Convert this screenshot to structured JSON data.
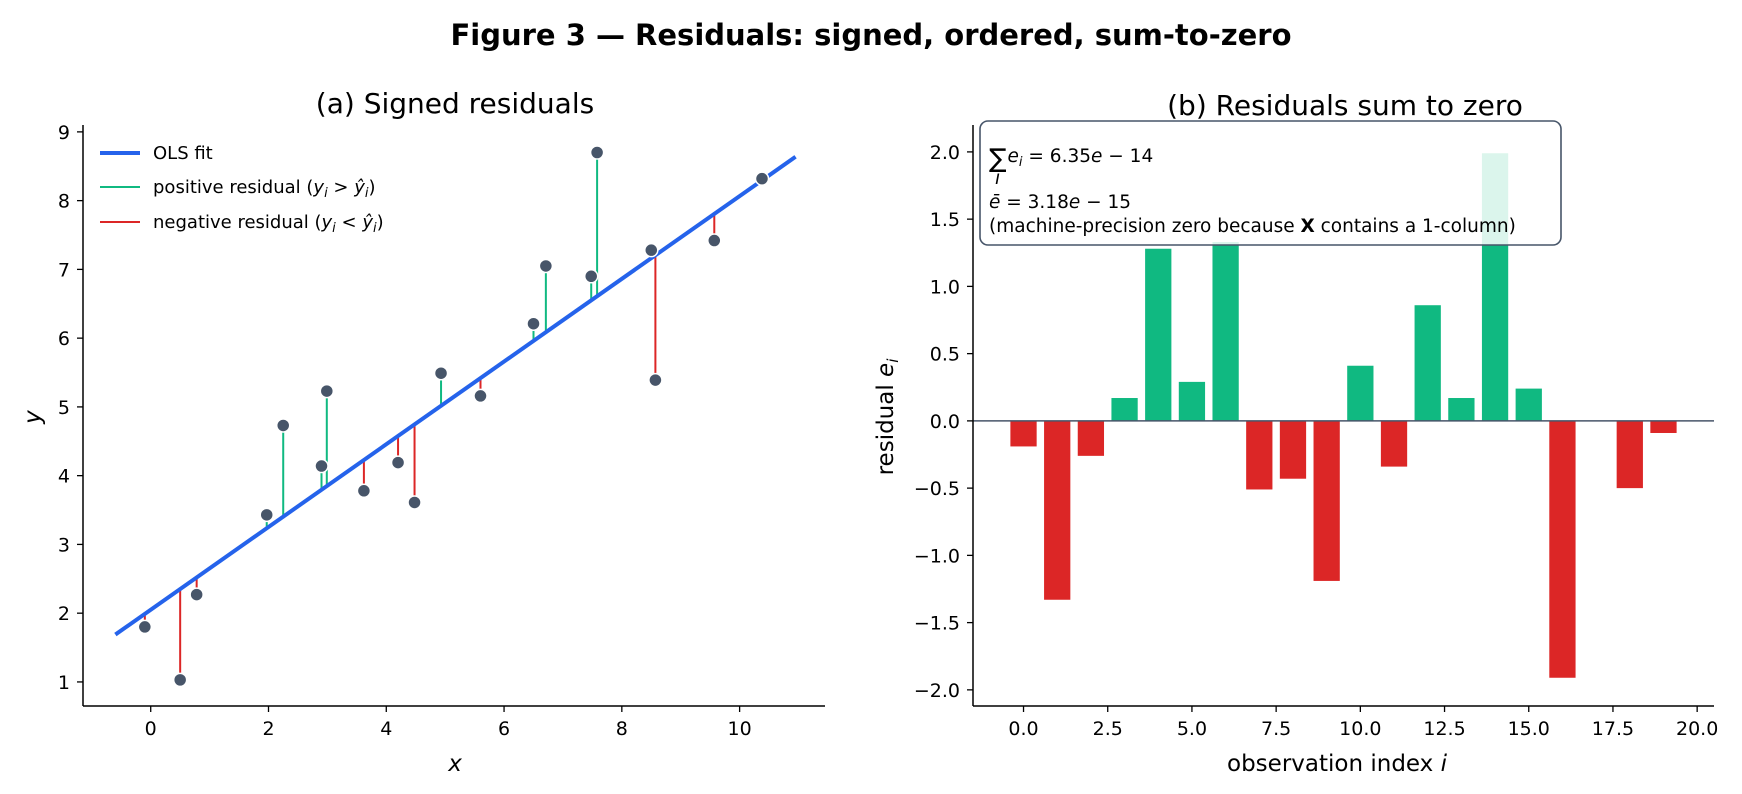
{
  "figure": {
    "suptitle": "Figure 3 — Residuals: signed, ordered, sum-to-zero"
  },
  "colors": {
    "fit": "#2563eb",
    "positive": "#10b981",
    "negative": "#dc2626",
    "point": "#475569",
    "axis": "#000000",
    "annotation_border": "#475569"
  },
  "chart_data": [
    {
      "type": "scatter",
      "title": "(a) Signed residuals",
      "xlabel": "x",
      "ylabel": "y",
      "xlim": [
        -1.15,
        11.45
      ],
      "ylim": [
        0.65,
        9.1
      ],
      "xticks": [
        0,
        2,
        4,
        6,
        8,
        10
      ],
      "yticks": [
        1,
        2,
        3,
        4,
        5,
        6,
        7,
        8,
        9
      ],
      "grid": false,
      "legend_position": "top-left",
      "legend": {
        "fit": "OLS fit",
        "positive_prefix": "positive residual (",
        "positive_math": "y_i > ŷ_i",
        "positive_suffix": ")",
        "negative_prefix": "negative residual (",
        "negative_math": "y_i < ŷ_i",
        "negative_suffix": ")"
      },
      "fit_line": {
        "intercept": 2.05,
        "slope": 0.6016,
        "x_range": [
          -0.6,
          10.95
        ]
      },
      "points": [
        {
          "x": -0.1,
          "y": 1.8
        },
        {
          "x": 0.5,
          "y": 1.03
        },
        {
          "x": 0.78,
          "y": 2.27
        },
        {
          "x": 1.97,
          "y": 3.43
        },
        {
          "x": 2.25,
          "y": 4.73
        },
        {
          "x": 2.9,
          "y": 4.14
        },
        {
          "x": 2.99,
          "y": 5.23
        },
        {
          "x": 3.62,
          "y": 3.78
        },
        {
          "x": 4.2,
          "y": 4.19
        },
        {
          "x": 4.48,
          "y": 3.61
        },
        {
          "x": 4.93,
          "y": 5.49
        },
        {
          "x": 5.6,
          "y": 5.16
        },
        {
          "x": 6.5,
          "y": 6.21
        },
        {
          "x": 6.71,
          "y": 7.05
        },
        {
          "x": 7.48,
          "y": 6.9
        },
        {
          "x": 7.58,
          "y": 8.7
        },
        {
          "x": 8.5,
          "y": 7.28
        },
        {
          "x": 8.57,
          "y": 5.39
        },
        {
          "x": 9.57,
          "y": 7.42
        },
        {
          "x": 10.38,
          "y": 8.32
        }
      ]
    },
    {
      "type": "bar",
      "title": "(b) Residuals sum to zero",
      "xlabel": "observation index i",
      "ylabel": "residual e_i",
      "xlim": [
        -1.5,
        20.5
      ],
      "ylim": [
        -2.12,
        2.2
      ],
      "xticks": [
        "0.0",
        "2.5",
        "5.0",
        "7.5",
        "10.0",
        "12.5",
        "15.0",
        "17.5",
        "20.0"
      ],
      "yticks": [
        "−2.0",
        "−1.5",
        "−1.0",
        "−0.5",
        "0.0",
        "0.5",
        "1.0",
        "1.5",
        "2.0"
      ],
      "grid": false,
      "categories": [
        0,
        1,
        2,
        3,
        4,
        5,
        6,
        7,
        8,
        9,
        10,
        11,
        12,
        13,
        14,
        15,
        16,
        17,
        18,
        19
      ],
      "values": [
        -0.19,
        -1.33,
        -0.26,
        0.17,
        1.28,
        0.29,
        1.33,
        -0.51,
        -0.43,
        -1.19,
        0.41,
        -0.34,
        0.86,
        0.17,
        1.99,
        0.24,
        -1.91,
        0.0,
        -0.5,
        -0.09
      ],
      "annotation": {
        "line1": "∑e_i = 6.35e − 14",
        "line2": "ē = 3.18e − 15",
        "line3_prefix": "(machine-precision zero because ",
        "line3_bold": "X",
        "line3_suffix": " contains a 1-column)"
      }
    }
  ]
}
